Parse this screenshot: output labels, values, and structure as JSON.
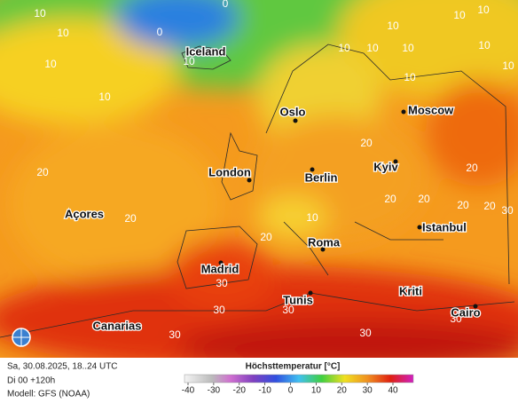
{
  "cities": [
    "Iceland",
    "Oslo",
    "Moscow",
    "London",
    "Berlin",
    "Kyiv",
    "Açores",
    "Madrid",
    "Roma",
    "Istanbul",
    "Canarias",
    "Tunis",
    "Kriti",
    "Cairo"
  ],
  "isotherm_labels": [
    0,
    0,
    10,
    10,
    10,
    10,
    10,
    10,
    10,
    10,
    10,
    10,
    10,
    10,
    10,
    10,
    10,
    20,
    20,
    20,
    20,
    20,
    20,
    20,
    20,
    20,
    30,
    30,
    30,
    30,
    30,
    30,
    30
  ],
  "footer": {
    "date": "Sa, 30.08.2025, 18..24 UTC",
    "run": "Di 00 +120h",
    "model": "Modell: GFS (NOAA)"
  },
  "legend": {
    "title": "Höchsttemperatur [°C]",
    "ticks": [
      -40,
      -30,
      -20,
      -10,
      0,
      10,
      20,
      30,
      40
    ]
  }
}
